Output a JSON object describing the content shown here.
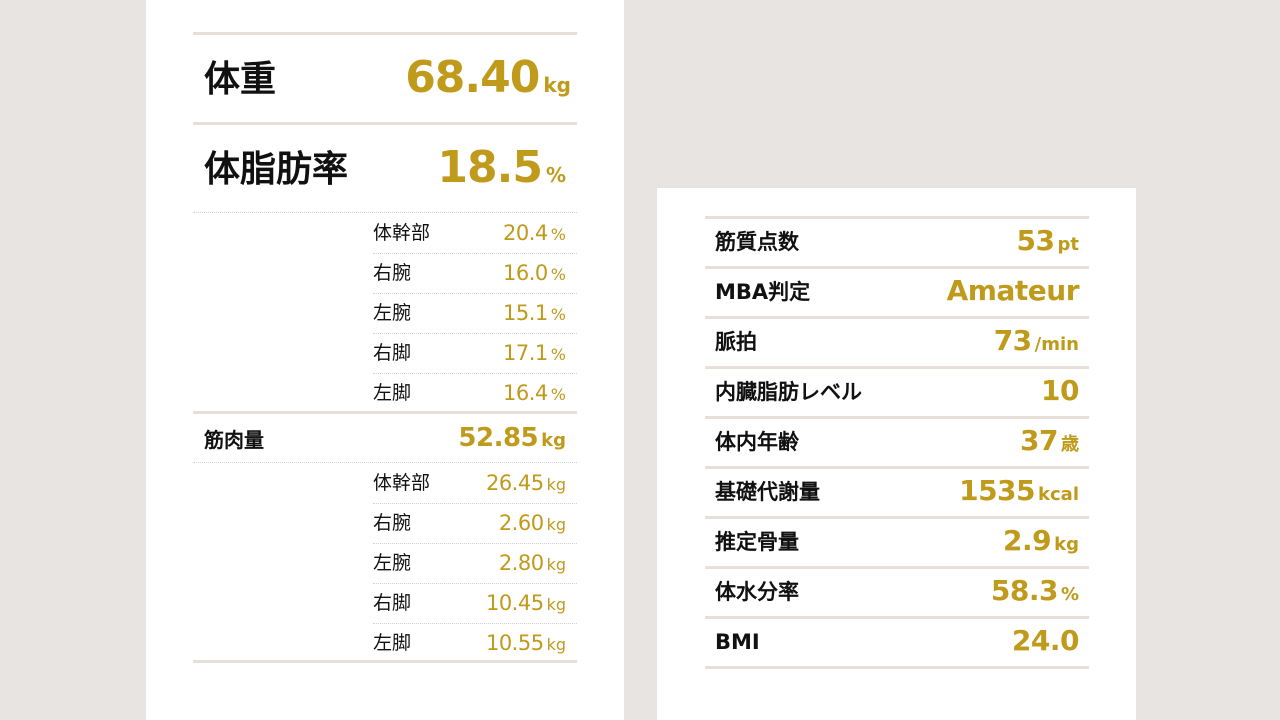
{
  "weight": {
    "label": "体重",
    "value": "68.40",
    "unit": "kg"
  },
  "body_fat": {
    "label": "体脂肪率",
    "value": "18.5",
    "unit": "%",
    "parts": [
      {
        "label": "体幹部",
        "value": "20.4",
        "unit": "%"
      },
      {
        "label": "右腕",
        "value": "16.0",
        "unit": "%"
      },
      {
        "label": "左腕",
        "value": "15.1",
        "unit": "%"
      },
      {
        "label": "右脚",
        "value": "17.1",
        "unit": "%"
      },
      {
        "label": "左脚",
        "value": "16.4",
        "unit": "%"
      }
    ]
  },
  "muscle": {
    "label": "筋肉量",
    "value": "52.85",
    "unit": "kg",
    "parts": [
      {
        "label": "体幹部",
        "value": "26.45",
        "unit": "kg"
      },
      {
        "label": "右腕",
        "value": "2.60",
        "unit": "kg"
      },
      {
        "label": "左腕",
        "value": "2.80",
        "unit": "kg"
      },
      {
        "label": "右脚",
        "value": "10.45",
        "unit": "kg"
      },
      {
        "label": "左脚",
        "value": "10.55",
        "unit": "kg"
      }
    ]
  },
  "metrics": [
    {
      "label": "筋質点数",
      "value": "53",
      "unit": "pt"
    },
    {
      "label": "MBA判定",
      "value": "Amateur",
      "unit": ""
    },
    {
      "label": "脈拍",
      "value": "73",
      "unit": "/min"
    },
    {
      "label": "内臓脂肪レベル",
      "value": "10",
      "unit": ""
    },
    {
      "label": "体内年齢",
      "value": "37",
      "unit": "歳"
    },
    {
      "label": "基礎代謝量",
      "value": "1535",
      "unit": "kcal"
    },
    {
      "label": "推定骨量",
      "value": "2.9",
      "unit": "kg"
    },
    {
      "label": "体水分率",
      "value": "58.3",
      "unit": "%"
    },
    {
      "label": "BMI",
      "value": "24.0",
      "unit": ""
    }
  ],
  "colors": {
    "accent": "#c09a1a",
    "background": "#e8e4e1",
    "card": "#ffffff",
    "rule": "#e6dfda"
  }
}
